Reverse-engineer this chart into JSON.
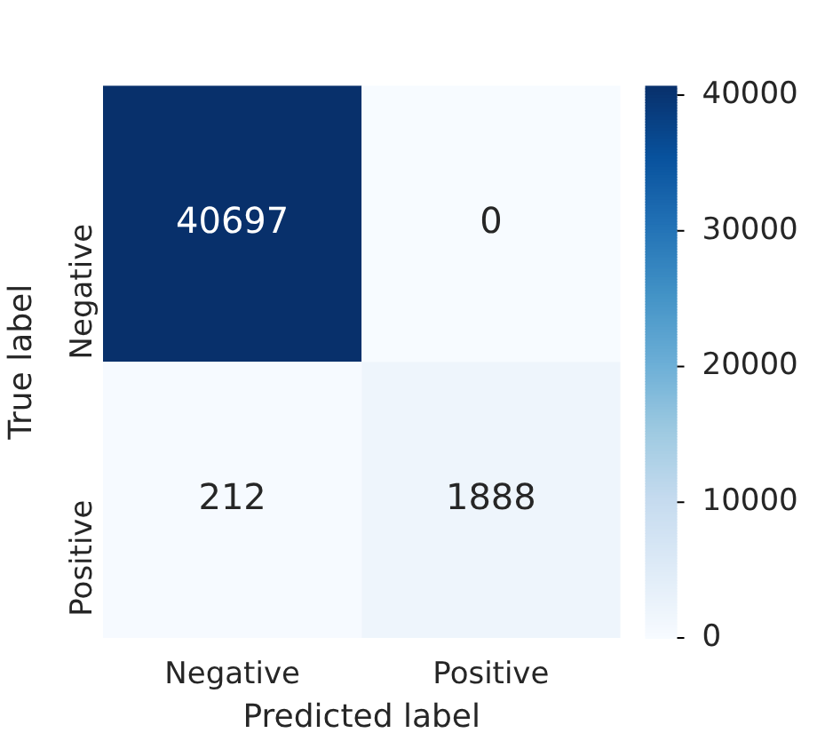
{
  "chart_data": {
    "type": "heatmap",
    "xlabel": "Predicted label",
    "ylabel": "True label",
    "categories": [
      "Negative",
      "Positive"
    ],
    "y_categories": [
      "Negative",
      "Positive"
    ],
    "cells": [
      [
        40697,
        0
      ],
      [
        212,
        1888
      ]
    ],
    "clim": [
      0,
      40697
    ],
    "cticks": [
      0,
      10000,
      20000,
      30000,
      40000
    ],
    "data_labels": true
  }
}
